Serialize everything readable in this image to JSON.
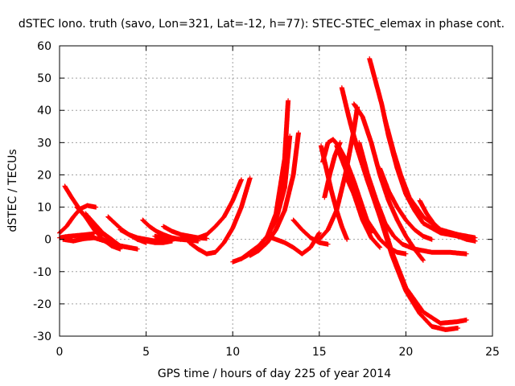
{
  "chart_data": {
    "type": "scatter",
    "title": "dSTEC Iono. truth (savo, Lon=321, Lat=-12, h=77): STEC-STEC_elemax in phase cont.",
    "xlabel": "GPS time / hours of day 225 of year 2014",
    "ylabel": "dSTEC  / TECUs",
    "xlim": [
      0,
      25
    ],
    "ylim": [
      -30,
      60
    ],
    "xticks": [
      0,
      5,
      10,
      15,
      20,
      25
    ],
    "yticks": [
      -30,
      -20,
      -10,
      0,
      10,
      20,
      30,
      40,
      50,
      60
    ],
    "grid": true,
    "marker": "+",
    "color": "#ff0000",
    "series": [
      {
        "x": [
          0.0,
          0.3,
          0.6,
          1.0,
          1.4,
          1.8,
          2.0
        ],
        "y": [
          0.5,
          0.8,
          1.0,
          1.2,
          1.4,
          1.6,
          1.8
        ]
      },
      {
        "x": [
          0.0,
          0.4,
          0.8,
          1.2,
          1.6,
          2.1
        ],
        "y": [
          2.0,
          4.0,
          7.0,
          9.5,
          10.5,
          10.0
        ]
      },
      {
        "x": [
          0.3,
          0.7,
          1.2,
          1.8,
          2.4,
          3.0
        ],
        "y": [
          16.5,
          13.0,
          9.0,
          5.0,
          2.0,
          0.0
        ]
      },
      {
        "x": [
          0.2,
          0.8,
          1.4,
          2.0,
          2.6,
          3.2
        ],
        "y": [
          0.0,
          -0.5,
          0.2,
          0.5,
          -0.5,
          -2.0
        ]
      },
      {
        "x": [
          1.0,
          1.5,
          2.0,
          2.5,
          3.0,
          3.5
        ],
        "y": [
          10.0,
          7.0,
          3.0,
          0.0,
          -2.0,
          -3.0
        ]
      },
      {
        "x": [
          1.5,
          2.0,
          2.5,
          3.0,
          3.5,
          4.0
        ],
        "y": [
          8.0,
          5.0,
          2.0,
          0.0,
          -2.0,
          -2.5
        ]
      },
      {
        "x": [
          2.8,
          3.2,
          3.6,
          4.0,
          4.5,
          5.0
        ],
        "y": [
          7.0,
          5.0,
          3.0,
          1.5,
          0.0,
          -1.0
        ]
      },
      {
        "x": [
          2.5,
          3.0,
          3.5,
          4.0,
          4.5
        ],
        "y": [
          0.0,
          -1.0,
          -2.0,
          -2.5,
          -3.0
        ]
      },
      {
        "x": [
          3.5,
          4.0,
          4.5,
          5.0,
          5.5,
          6.0
        ],
        "y": [
          3.0,
          1.5,
          0.5,
          0.0,
          -0.5,
          -0.5
        ]
      },
      {
        "x": [
          4.8,
          5.2,
          5.6,
          6.0,
          6.5,
          7.0
        ],
        "y": [
          6.0,
          4.0,
          2.5,
          1.5,
          0.5,
          0.0
        ]
      },
      {
        "x": [
          4.5,
          5.0,
          5.5,
          6.0,
          6.5
        ],
        "y": [
          0.0,
          -0.5,
          -1.0,
          -1.0,
          -0.5
        ]
      },
      {
        "x": [
          6.0,
          6.5,
          7.0,
          7.5,
          8.0,
          8.5
        ],
        "y": [
          4.0,
          2.5,
          1.5,
          1.0,
          0.5,
          0.3
        ]
      },
      {
        "x": [
          5.5,
          6.0,
          7.0,
          8.0
        ],
        "y": [
          1.0,
          0.5,
          0.0,
          -0.5
        ]
      },
      {
        "x": [
          7.0,
          7.5,
          8.0,
          8.5,
          9.0,
          9.5,
          10.0,
          10.5
        ],
        "y": [
          0.5,
          0.0,
          0.5,
          1.5,
          4.0,
          7.0,
          12.0,
          18.5
        ]
      },
      {
        "x": [
          7.5,
          8.0,
          8.5,
          9.0,
          9.5,
          10.0,
          10.5,
          11.0
        ],
        "y": [
          -1.0,
          -3.0,
          -4.5,
          -4.0,
          -1.0,
          3.5,
          10.0,
          19.0
        ]
      },
      {
        "x": [
          10.0,
          10.5,
          11.0,
          11.5,
          12.0,
          12.5,
          13.0,
          13.2
        ],
        "y": [
          -7.0,
          -6.0,
          -4.5,
          -2.5,
          1.0,
          8.0,
          25.0,
          43.0
        ]
      },
      {
        "x": [
          10.5,
          11.0,
          11.5,
          12.0,
          12.5,
          13.0,
          13.3
        ],
        "y": [
          -6.0,
          -4.0,
          -2.0,
          1.0,
          6.0,
          16.0,
          32.0
        ]
      },
      {
        "x": [
          11.0,
          11.5,
          12.0,
          12.5,
          13.0,
          13.5,
          13.8
        ],
        "y": [
          -5.0,
          -3.5,
          -1.0,
          3.0,
          9.0,
          20.0,
          33.0
        ]
      },
      {
        "x": [
          12.0,
          12.5,
          13.0,
          13.5,
          14.0,
          14.5,
          15.0
        ],
        "y": [
          1.0,
          0.0,
          -1.0,
          -2.5,
          -4.5,
          -2.5,
          2.0
        ]
      },
      {
        "x": [
          13.5,
          14.0,
          14.5,
          15.0,
          15.5
        ],
        "y": [
          6.0,
          3.0,
          0.5,
          -1.0,
          -1.5
        ]
      },
      {
        "x": [
          15.0,
          15.5,
          16.0,
          16.5,
          17.0,
          17.2
        ],
        "y": [
          0.0,
          3.0,
          9.0,
          20.0,
          34.0,
          41.0
        ]
      },
      {
        "x": [
          15.1,
          15.4,
          15.7,
          16.0,
          16.3,
          16.6
        ],
        "y": [
          29.0,
          22.0,
          15.0,
          9.0,
          4.0,
          0.0
        ]
      },
      {
        "x": [
          15.2,
          15.5,
          15.8,
          16.1,
          16.5,
          17.0,
          17.5,
          18.0
        ],
        "y": [
          24.0,
          30.0,
          31.0,
          29.0,
          25.0,
          18.0,
          10.0,
          2.0
        ]
      },
      {
        "x": [
          15.3,
          15.6,
          15.9,
          16.2
        ],
        "y": [
          13.0,
          20.0,
          26.0,
          30.0
        ]
      },
      {
        "x": [
          16.0,
          16.5,
          17.0,
          17.5,
          18.0,
          18.5
        ],
        "y": [
          29.0,
          22.0,
          14.0,
          6.0,
          0.5,
          -2.5
        ]
      },
      {
        "x": [
          16.3,
          16.7,
          17.2,
          17.8,
          18.5,
          19.2,
          20.0,
          21.0,
          22.0,
          23.0,
          23.5
        ],
        "y": [
          47.0,
          38.0,
          28.0,
          18.0,
          8.0,
          -4.0,
          -15.0,
          -22.5,
          -26.0,
          -25.5,
          -25.0
        ]
      },
      {
        "x": [
          16.8,
          17.2,
          17.8,
          18.5,
          19.2,
          20.0,
          20.8,
          21.5,
          22.3,
          23.0
        ],
        "y": [
          36.0,
          28.0,
          18.0,
          7.0,
          -5.0,
          -16.0,
          -23.0,
          -27.0,
          -28.0,
          -27.5
        ]
      },
      {
        "x": [
          17.0,
          17.5,
          18.0,
          18.5,
          19.0,
          19.5,
          20.0,
          20.5,
          21.0
        ],
        "y": [
          42.0,
          38.0,
          30.0,
          20.0,
          12.0,
          6.0,
          1.0,
          -3.0,
          -6.5
        ]
      },
      {
        "x": [
          16.5,
          17.0,
          17.5,
          18.0,
          18.5,
          19.0,
          19.5,
          20.0
        ],
        "y": [
          20.0,
          14.0,
          8.0,
          4.0,
          0.0,
          -2.5,
          -4.0,
          -4.5
        ]
      },
      {
        "x": [
          17.3,
          17.8,
          18.3,
          18.8,
          19.3,
          19.8,
          20.5,
          21.5,
          22.5,
          23.5
        ],
        "y": [
          30.0,
          20.0,
          12.0,
          5.0,
          1.0,
          -1.5,
          -3.0,
          -4.0,
          -4.0,
          -4.5
        ]
      },
      {
        "x": [
          17.9,
          18.2,
          18.6,
          19.0,
          19.5,
          20.0,
          20.5,
          21.0,
          22.0,
          23.0,
          24.0
        ],
        "y": [
          56.0,
          50.0,
          42.0,
          32.0,
          22.0,
          14.0,
          9.0,
          5.0,
          2.0,
          1.0,
          -0.5
        ]
      },
      {
        "x": [
          18.8,
          19.0,
          19.3,
          19.7,
          20.2,
          21.0,
          22.0,
          23.0,
          24.0
        ],
        "y": [
          37.0,
          33.0,
          27.0,
          20.0,
          13.0,
          7.0,
          3.0,
          1.5,
          0.5
        ]
      },
      {
        "x": [
          18.5,
          19.0,
          19.5,
          20.0,
          20.5,
          21.0,
          21.5
        ],
        "y": [
          22.0,
          15.0,
          10.0,
          6.0,
          3.0,
          1.0,
          0.0
        ]
      },
      {
        "x": [
          20.8,
          21.2,
          21.6,
          22.0,
          22.5,
          23.0,
          23.5,
          24.0
        ],
        "y": [
          12.0,
          8.0,
          5.0,
          3.0,
          2.0,
          1.0,
          0.5,
          -0.5
        ]
      },
      {
        "x": [
          21.5,
          22.0,
          22.5,
          23.0,
          23.5,
          24.0
        ],
        "y": [
          4.0,
          3.0,
          2.0,
          1.0,
          0.0,
          -0.5
        ]
      }
    ]
  }
}
